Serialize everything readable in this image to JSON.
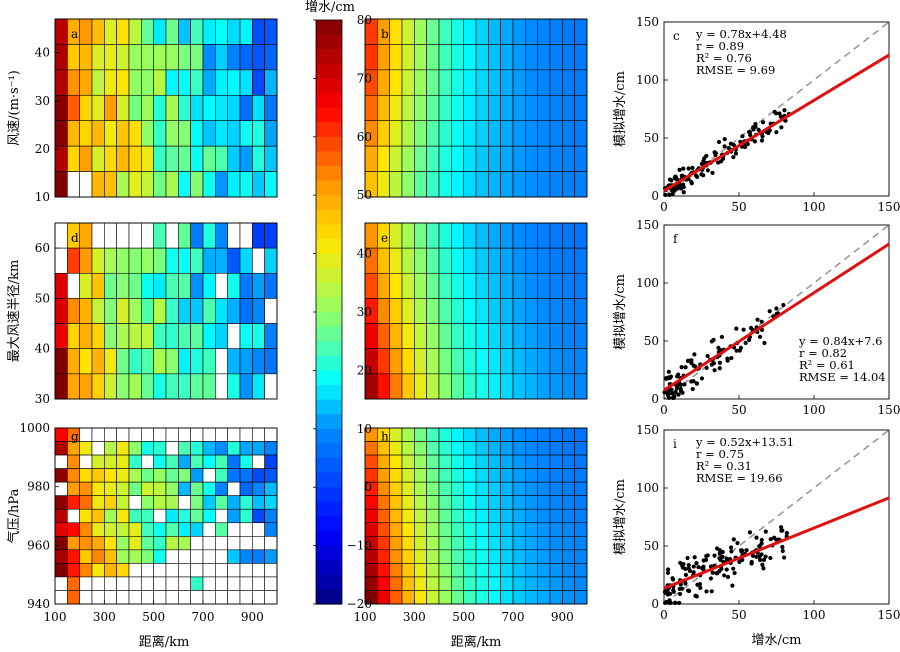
{
  "figure": {
    "colorbar": {
      "label": "增水/cm",
      "ticks": [
        "80",
        "70",
        "60",
        "50",
        "40",
        "30",
        "20",
        "10",
        "0",
        "−10",
        "−20"
      ],
      "range": [
        -20,
        80
      ]
    },
    "x_label": "距离/km",
    "x_ticks": [
      "100",
      "300",
      "500",
      "700",
      "900"
    ],
    "x_range_km": [
      100,
      1000
    ]
  },
  "chart_data": [
    {
      "type": "heatmap",
      "letter": "a",
      "ylabel": "风速/(m·s⁻¹)",
      "yticks": [
        "40",
        "30",
        "20",
        "10"
      ],
      "y_range": [
        10,
        47
      ],
      "rows": 7,
      "cols": 18,
      "kind": "obs",
      "seed": 3,
      "base": [
        78,
        48,
        45,
        42,
        40,
        36,
        32,
        28,
        25,
        22,
        20,
        18,
        16,
        14,
        12,
        10,
        8,
        6
      ],
      "blanks": [
        [
          6,
          1
        ],
        [
          6,
          2
        ]
      ]
    },
    {
      "type": "heatmap",
      "letter": "b",
      "ylabel": "",
      "yticks": [],
      "y_range": [
        10,
        47
      ],
      "rows": 7,
      "cols": 18,
      "kind": "model",
      "rowMax": [
        60,
        60,
        58,
        55,
        52,
        48,
        45
      ],
      "blanks": []
    },
    {
      "type": "scatter",
      "letter": "c",
      "stats": [
        "y = 0.78x+4.48",
        "r = 0.89",
        "R² = 0.76",
        "RMSE = 9.69"
      ],
      "stats_pos": "top-left",
      "xlabel": "",
      "ylabel": "模拟增水/cm",
      "xlim": [
        0,
        150
      ],
      "ylim": [
        0,
        150
      ],
      "ticks": [
        "0",
        "50",
        "100",
        "150"
      ],
      "fit": {
        "slope": 0.78,
        "intercept": 4.48
      },
      "seed": 11,
      "n": 140,
      "spread": 10
    },
    {
      "type": "heatmap",
      "letter": "d",
      "ylabel": "最大风速半径/km",
      "yticks": [
        "60",
        "50",
        "40",
        "30"
      ],
      "y_range": [
        30,
        65
      ],
      "rows": 7,
      "cols": 18,
      "kind": "obs",
      "seed": 7,
      "base": [
        70,
        50,
        42,
        36,
        32,
        28,
        26,
        24,
        22,
        20,
        18,
        16,
        14,
        12,
        10,
        10,
        8,
        8
      ],
      "blanks": [
        [
          0,
          0
        ],
        [
          0,
          3
        ],
        [
          0,
          4
        ],
        [
          0,
          5
        ],
        [
          0,
          6
        ],
        [
          0,
          7
        ],
        [
          0,
          9
        ],
        [
          0,
          14
        ],
        [
          0,
          15
        ],
        [
          1,
          0
        ],
        [
          1,
          16
        ],
        [
          2,
          1
        ],
        [
          2,
          13
        ],
        [
          3,
          17
        ],
        [
          4,
          14
        ],
        [
          5,
          13
        ],
        [
          6,
          13
        ],
        [
          6,
          17
        ]
      ]
    },
    {
      "type": "heatmap",
      "letter": "e",
      "ylabel": "",
      "yticks": [],
      "y_range": [
        30,
        65
      ],
      "rows": 7,
      "cols": 18,
      "kind": "model",
      "rowMax": [
        52,
        55,
        58,
        62,
        66,
        70,
        74
      ],
      "blanks": []
    },
    {
      "type": "scatter",
      "letter": "f",
      "stats": [
        "y = 0.84x+7.6",
        "r = 0.82",
        "R² = 0.61",
        "RMSE = 14.04"
      ],
      "stats_pos": "bottom-right",
      "xlabel": "",
      "ylabel": "模拟增水/cm",
      "xlim": [
        0,
        150
      ],
      "ylim": [
        0,
        150
      ],
      "ticks": [
        "0",
        "50",
        "100",
        "150"
      ],
      "fit": {
        "slope": 0.84,
        "intercept": 7.6
      },
      "seed": 23,
      "n": 110,
      "spread": 15
    },
    {
      "type": "heatmap",
      "letter": "g",
      "ylabel": "气压/hPa",
      "yticks": [
        "1000",
        "980",
        "960",
        "940"
      ],
      "y_range": [
        940,
        1000
      ],
      "rows": 13,
      "cols": 18,
      "kind": "obs",
      "seed": 13,
      "base": [
        70,
        56,
        48,
        42,
        36,
        32,
        28,
        26,
        24,
        22,
        20,
        18,
        16,
        14,
        12,
        10,
        8,
        8
      ],
      "blanks": [
        [
          0,
          2
        ],
        [
          0,
          3
        ],
        [
          0,
          4
        ],
        [
          0,
          5
        ],
        [
          0,
          6
        ],
        [
          0,
          7
        ],
        [
          0,
          8
        ],
        [
          0,
          9
        ],
        [
          0,
          10
        ],
        [
          0,
          11
        ],
        [
          0,
          12
        ],
        [
          0,
          13
        ],
        [
          0,
          14
        ],
        [
          0,
          15
        ],
        [
          0,
          16
        ],
        [
          0,
          17
        ],
        [
          1,
          3
        ],
        [
          1,
          9
        ],
        [
          2,
          0
        ],
        [
          2,
          2
        ],
        [
          2,
          7
        ],
        [
          2,
          16
        ],
        [
          3,
          12
        ],
        [
          4,
          0
        ],
        [
          4,
          14
        ],
        [
          5,
          6
        ],
        [
          5,
          10
        ],
        [
          6,
          1
        ],
        [
          6,
          8
        ],
        [
          6,
          13
        ],
        [
          7,
          12
        ],
        [
          7,
          14
        ],
        [
          7,
          15
        ],
        [
          7,
          16
        ],
        [
          8,
          11
        ],
        [
          8,
          12
        ],
        [
          8,
          13
        ],
        [
          8,
          14
        ],
        [
          8,
          15
        ],
        [
          8,
          16
        ],
        [
          8,
          17
        ],
        [
          9,
          9
        ],
        [
          9,
          10
        ],
        [
          9,
          11
        ],
        [
          9,
          12
        ],
        [
          9,
          13
        ],
        [
          10,
          6
        ],
        [
          10,
          7
        ],
        [
          10,
          8
        ],
        [
          10,
          9
        ],
        [
          10,
          10
        ],
        [
          10,
          11
        ],
        [
          10,
          12
        ],
        [
          10,
          13
        ],
        [
          10,
          14
        ],
        [
          10,
          15
        ],
        [
          10,
          16
        ],
        [
          10,
          17
        ],
        [
          11,
          0
        ],
        [
          11,
          2
        ],
        [
          11,
          3
        ],
        [
          11,
          4
        ],
        [
          11,
          5
        ],
        [
          11,
          6
        ],
        [
          11,
          7
        ],
        [
          11,
          8
        ],
        [
          11,
          9
        ],
        [
          11,
          10
        ],
        [
          11,
          12
        ],
        [
          11,
          13
        ],
        [
          11,
          14
        ],
        [
          11,
          15
        ],
        [
          11,
          16
        ],
        [
          11,
          17
        ],
        [
          12,
          0
        ],
        [
          12,
          2
        ],
        [
          12,
          3
        ],
        [
          12,
          4
        ],
        [
          12,
          5
        ],
        [
          12,
          6
        ],
        [
          12,
          7
        ],
        [
          12,
          8
        ],
        [
          12,
          9
        ],
        [
          12,
          10
        ],
        [
          12,
          11
        ],
        [
          12,
          12
        ],
        [
          12,
          13
        ],
        [
          12,
          14
        ],
        [
          12,
          15
        ],
        [
          12,
          16
        ],
        [
          12,
          17
        ]
      ]
    },
    {
      "type": "heatmap",
      "letter": "h",
      "ylabel": "",
      "yticks": [],
      "y_range": [
        940,
        1000
      ],
      "rows": 13,
      "cols": 18,
      "kind": "model",
      "rowMax": [
        52,
        55,
        58,
        60,
        62,
        64,
        66,
        68,
        70,
        72,
        74,
        76,
        78
      ],
      "blanks": []
    },
    {
      "type": "scatter",
      "letter": "i",
      "stats": [
        "y = 0.52x+13.51",
        "r = 0.75",
        "R² = 0.31",
        "RMSE = 19.66"
      ],
      "stats_pos": "top-left",
      "xlabel": "增水/cm",
      "ylabel": "模拟增水/cm",
      "xlim": [
        0,
        150
      ],
      "ylim": [
        0,
        150
      ],
      "ticks": [
        "0",
        "50",
        "100",
        "150"
      ],
      "fit": {
        "slope": 0.52,
        "intercept": 13.51
      },
      "seed": 37,
      "n": 150,
      "spread": 18
    }
  ]
}
